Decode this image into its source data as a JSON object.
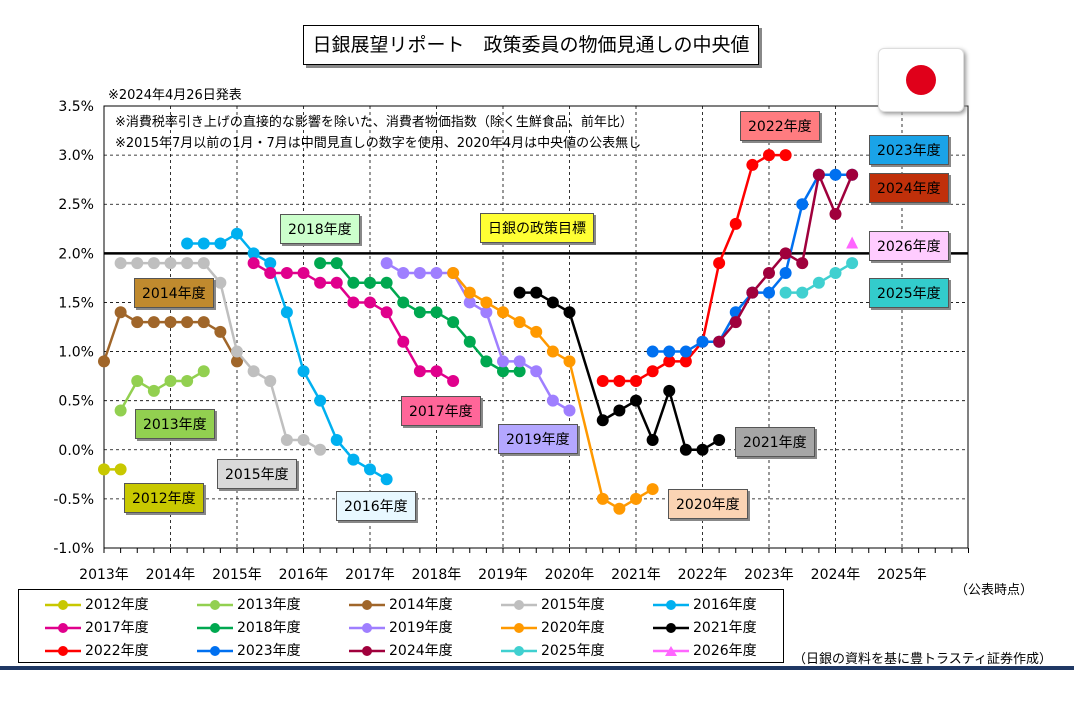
{
  "title": "日銀展望リポート　政策委員の物価見通しの中央値",
  "publish_note": "※2024年4月26日発表",
  "note1": "※消費税率引き上げの直接的な影響を除いた、消費者物価指数（除く生鮮食品、前年比）",
  "note2": "※2015年7月以前の1月・7月は中間見直しの数字を使用、2020年4月は中央値の公表無し",
  "target_label": "日銀の政策目標",
  "x_suffix": "（公表時点）",
  "source": "（日銀の資料を基に豊トラスティ証券作成）",
  "colors": {
    "2012": "#c8c800",
    "2013": "#92d050",
    "2014": "#a0662a",
    "2015": "#bfbfbf",
    "2016": "#00b0f0",
    "2017": "#e0008c",
    "2018": "#00a850",
    "2019": "#9f7fff",
    "2020": "#ff9900",
    "2021": "#000000",
    "2022": "#ff0000",
    "2023": "#0070f0",
    "2024": "#a0003c",
    "2025": "#40d0d0",
    "2026": "#ff66ff"
  },
  "series_labels": {
    "2012": "2012年度",
    "2013": "2013年度",
    "2014": "2014年度",
    "2015": "2015年度",
    "2016": "2016年度",
    "2017": "2017年度",
    "2018": "2018年度",
    "2019": "2019年度",
    "2020": "2020年度",
    "2021": "2021年度",
    "2022": "2022年度",
    "2023": "2023年度",
    "2024": "2024年度",
    "2025": "2025年度",
    "2026": "2026年度"
  },
  "chart_data": {
    "type": "line",
    "title": "日銀展望リポート　政策委員の物価見通しの中央値",
    "xlabel": "（公表時点）",
    "ylabel": "",
    "ylim": [
      -1.0,
      3.5
    ],
    "y_ticks": [
      "3.5%",
      "3.0%",
      "2.5%",
      "2.0%",
      "1.5%",
      "1.0%",
      "0.5%",
      "0.0%",
      "-0.5%",
      "-1.0%"
    ],
    "x_ticks": [
      "2013年",
      "2014年",
      "2015年",
      "2016年",
      "2017年",
      "2018年",
      "2019年",
      "2020年",
      "2021年",
      "2022年",
      "2023年",
      "2024年",
      "2025年"
    ],
    "xlim": [
      2013.0,
      2026.0
    ],
    "grid": true,
    "reference_line": {
      "y": 2.0,
      "label": "日銀の政策目標"
    },
    "legend_position": "bottom",
    "series": [
      {
        "name": "2012年度",
        "x": [
          2013.0,
          2013.25
        ],
        "y": [
          -0.2,
          -0.2
        ]
      },
      {
        "name": "2013年度",
        "x": [
          2013.25,
          2013.5,
          2013.75,
          2014.0,
          2014.25,
          2014.5
        ],
        "y": [
          0.4,
          0.7,
          0.6,
          0.7,
          0.7,
          0.8
        ]
      },
      {
        "name": "2014年度",
        "x": [
          2013.0,
          2013.25,
          2013.5,
          2013.75,
          2014.0,
          2014.25,
          2014.5,
          2014.75,
          2015.0
        ],
        "y": [
          0.9,
          1.4,
          1.3,
          1.3,
          1.3,
          1.3,
          1.3,
          1.2,
          0.9
        ]
      },
      {
        "name": "2015年度",
        "x": [
          2013.25,
          2013.5,
          2013.75,
          2014.0,
          2014.25,
          2014.5,
          2014.75,
          2015.0,
          2015.25,
          2015.5,
          2015.75,
          2016.0,
          2016.25
        ],
        "y": [
          1.9,
          1.9,
          1.9,
          1.9,
          1.9,
          1.9,
          1.7,
          1.0,
          0.8,
          0.7,
          0.1,
          0.1,
          0.0
        ]
      },
      {
        "name": "2016年度",
        "x": [
          2014.25,
          2014.5,
          2014.75,
          2015.0,
          2015.25,
          2015.5,
          2015.75,
          2016.0,
          2016.25,
          2016.5,
          2016.75,
          2017.0,
          2017.25
        ],
        "y": [
          2.1,
          2.1,
          2.1,
          2.2,
          2.0,
          1.9,
          1.4,
          0.8,
          0.5,
          0.1,
          -0.1,
          -0.2,
          -0.3
        ]
      },
      {
        "name": "2017年度",
        "x": [
          2015.25,
          2015.5,
          2015.75,
          2016.0,
          2016.25,
          2016.5,
          2016.75,
          2017.0,
          2017.25,
          2017.5,
          2017.75,
          2018.0,
          2018.25
        ],
        "y": [
          1.9,
          1.8,
          1.8,
          1.8,
          1.7,
          1.7,
          1.5,
          1.5,
          1.4,
          1.1,
          0.8,
          0.8,
          0.7
        ]
      },
      {
        "name": "2018年度",
        "x": [
          2016.25,
          2016.5,
          2016.75,
          2017.0,
          2017.25,
          2017.5,
          2017.75,
          2018.0,
          2018.25,
          2018.5,
          2018.75,
          2019.0,
          2019.25
        ],
        "y": [
          1.9,
          1.9,
          1.7,
          1.7,
          1.7,
          1.5,
          1.4,
          1.4,
          1.3,
          1.1,
          0.9,
          0.8,
          0.8
        ]
      },
      {
        "name": "2019年度",
        "x": [
          2017.25,
          2017.5,
          2017.75,
          2018.0,
          2018.25,
          2018.5,
          2018.75,
          2019.0,
          2019.25,
          2019.5,
          2019.75,
          2020.0
        ],
        "y": [
          1.9,
          1.8,
          1.8,
          1.8,
          1.8,
          1.5,
          1.4,
          0.9,
          0.9,
          0.8,
          0.5,
          0.4
        ]
      },
      {
        "name": "2020年度",
        "x": [
          2018.25,
          2018.5,
          2018.75,
          2019.0,
          2019.25,
          2019.5,
          2019.75,
          2020.0,
          2020.5,
          2020.75,
          2021.0,
          2021.25
        ],
        "y": [
          1.8,
          1.6,
          1.5,
          1.4,
          1.3,
          1.2,
          1.0,
          0.9,
          -0.5,
          -0.6,
          -0.5,
          -0.4
        ]
      },
      {
        "name": "2021年度",
        "x": [
          2019.25,
          2019.5,
          2019.75,
          2020.0,
          2020.5,
          2020.75,
          2021.0,
          2021.25,
          2021.5,
          2021.75,
          2022.0,
          2022.25
        ],
        "y": [
          1.6,
          1.6,
          1.5,
          1.4,
          0.3,
          0.4,
          0.5,
          0.1,
          0.6,
          0.0,
          0.0,
          0.1
        ]
      },
      {
        "name": "2022年度",
        "x": [
          2020.5,
          2020.75,
          2021.0,
          2021.25,
          2021.5,
          2021.75,
          2022.0,
          2022.25,
          2022.5,
          2022.75,
          2023.0,
          2023.25
        ],
        "y": [
          0.7,
          0.7,
          0.7,
          0.8,
          0.9,
          0.9,
          1.1,
          1.9,
          2.3,
          2.9,
          3.0,
          3.0
        ]
      },
      {
        "name": "2023年度",
        "x": [
          2021.25,
          2021.5,
          2021.75,
          2022.0,
          2022.25,
          2022.5,
          2022.75,
          2023.0,
          2023.25,
          2023.5,
          2023.75,
          2024.0,
          2024.25
        ],
        "y": [
          1.0,
          1.0,
          1.0,
          1.1,
          1.1,
          1.4,
          1.6,
          1.6,
          1.8,
          2.5,
          2.8,
          2.8,
          2.8
        ]
      },
      {
        "name": "2024年度",
        "x": [
          2022.25,
          2022.5,
          2022.75,
          2023.0,
          2023.25,
          2023.5,
          2023.75,
          2024.0,
          2024.25
        ],
        "y": [
          1.1,
          1.3,
          1.6,
          1.8,
          2.0,
          1.9,
          2.8,
          2.4,
          2.8
        ]
      },
      {
        "name": "2025年度",
        "x": [
          2023.25,
          2023.5,
          2023.75,
          2024.0,
          2024.25
        ],
        "y": [
          1.6,
          1.6,
          1.7,
          1.8,
          1.9
        ]
      },
      {
        "name": "2026年度",
        "x": [
          2024.25
        ],
        "y": [
          2.1
        ]
      }
    ]
  }
}
